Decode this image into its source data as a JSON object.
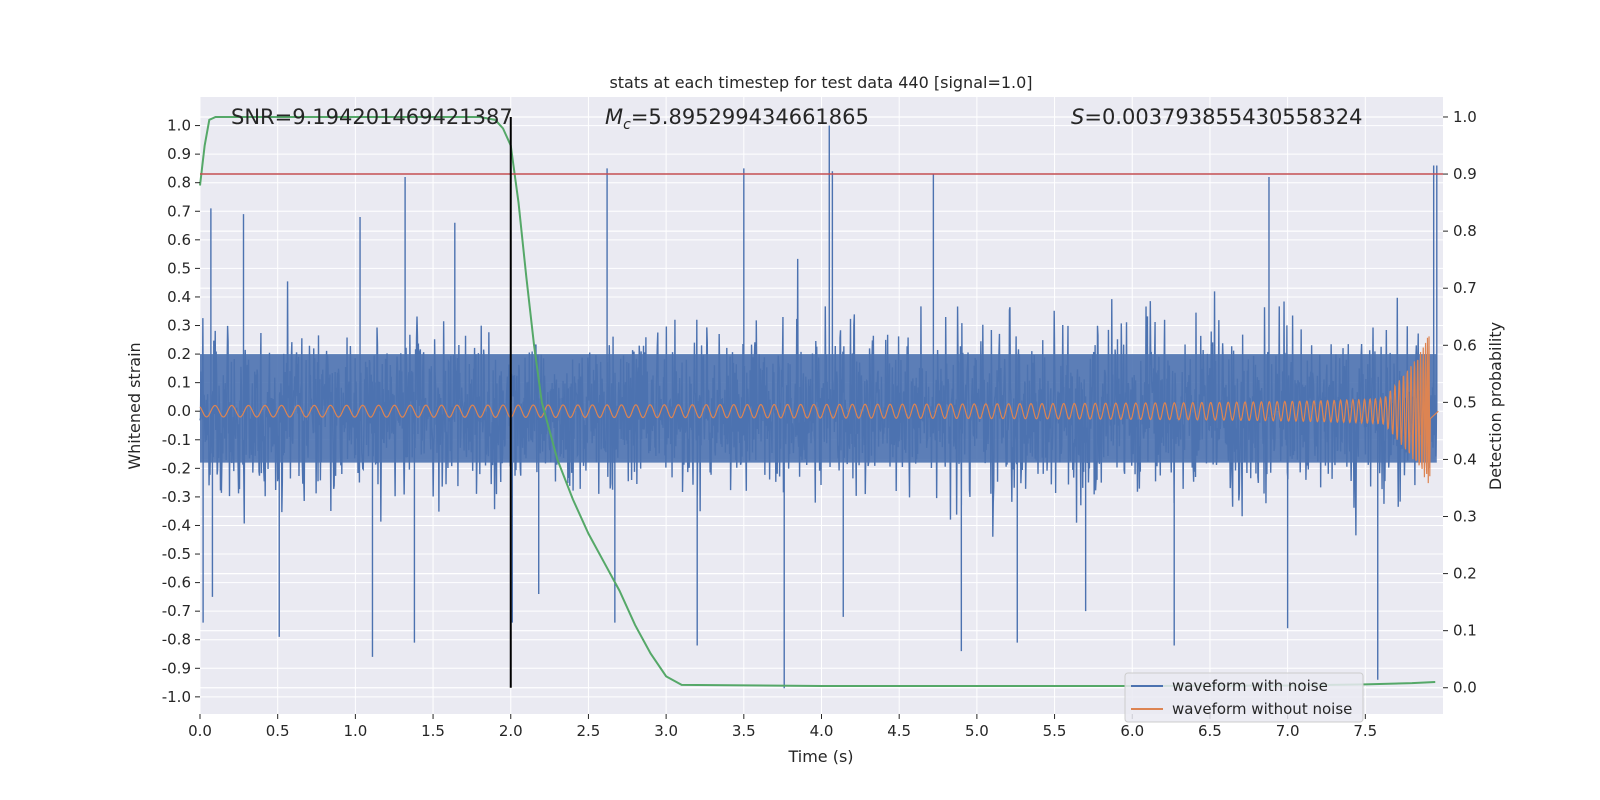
{
  "chart_data": {
    "type": "line",
    "title": "stats at each timestep for test data 440 [signal=1.0]",
    "xlabel": "Time (s)",
    "ylabel": "Whitened strain",
    "y2label": "Detection probability",
    "xlim": [
      0.0,
      8.0
    ],
    "ylim": [
      -1.06,
      1.1
    ],
    "y2lim": [
      -0.046,
      1.035
    ],
    "xticks": [
      0.0,
      0.5,
      1.0,
      1.5,
      2.0,
      2.5,
      3.0,
      3.5,
      4.0,
      4.5,
      5.0,
      5.5,
      6.0,
      6.5,
      7.0,
      7.5
    ],
    "xtick_labels": [
      "0.0",
      "0.5",
      "1.0",
      "1.5",
      "2.0",
      "2.5",
      "3.0",
      "3.5",
      "4.0",
      "4.5",
      "5.0",
      "5.5",
      "6.0",
      "6.5",
      "7.0",
      "7.5"
    ],
    "yticks": [
      1.0,
      0.9,
      0.8,
      0.7,
      0.6,
      0.5,
      0.4,
      0.3,
      0.2,
      0.1,
      0.0,
      -0.1,
      -0.2,
      -0.3,
      -0.4,
      -0.5,
      -0.6,
      -0.7,
      -0.8,
      -0.9,
      -1.0
    ],
    "ytick_labels": [
      "1.0",
      "0.9",
      "0.8",
      "0.7",
      "0.6",
      "0.5",
      "0.4",
      "0.3",
      "0.2",
      "0.1",
      "0.0",
      "-0.1",
      "-0.2",
      "-0.3",
      "-0.4",
      "-0.5",
      "-0.6",
      "-0.7",
      "-0.8",
      "-0.9",
      "-1.0"
    ],
    "y2ticks": [
      1.0,
      0.9,
      0.8,
      0.7,
      0.6,
      0.5,
      0.4,
      0.3,
      0.2,
      0.1,
      0.0
    ],
    "y2tick_labels": [
      "1.0",
      "0.9",
      "0.8",
      "0.7",
      "0.6",
      "0.5",
      "0.4",
      "0.3",
      "0.2",
      "0.1",
      "0.0"
    ],
    "annotations": {
      "snr": "SNR=9.194201469421387",
      "mc_symbol": "M",
      "mc_sub": "c",
      "mc_value": "=5.895299434661865",
      "s_symbol": "S",
      "s_value": "=0.003793855430558324"
    },
    "threshold": {
      "value": 0.9,
      "axis": "y2",
      "color": "#c44e52"
    },
    "marker_time": 2.0,
    "series": [
      {
        "name": "waveform with noise",
        "color": "#4c72b0",
        "axis": "y",
        "description": "dense whitened noise, mostly within ±0.45, spikes up to ~±1.0",
        "envelope_typical": 0.42,
        "spikes": [
          {
            "x": 0.02,
            "y": -0.74
          },
          {
            "x": 0.07,
            "y": 0.71
          },
          {
            "x": 0.08,
            "y": -0.65
          },
          {
            "x": 0.28,
            "y": 0.69
          },
          {
            "x": 0.51,
            "y": -0.79
          },
          {
            "x": 1.03,
            "y": 0.68
          },
          {
            "x": 1.11,
            "y": -0.86
          },
          {
            "x": 1.32,
            "y": 0.82
          },
          {
            "x": 1.38,
            "y": -0.81
          },
          {
            "x": 1.64,
            "y": 0.66
          },
          {
            "x": 2.01,
            "y": -0.74
          },
          {
            "x": 2.18,
            "y": -0.64
          },
          {
            "x": 2.62,
            "y": 0.85
          },
          {
            "x": 2.67,
            "y": -0.74
          },
          {
            "x": 3.2,
            "y": -0.82
          },
          {
            "x": 3.5,
            "y": 0.85
          },
          {
            "x": 3.76,
            "y": -0.97
          },
          {
            "x": 4.05,
            "y": 1.0
          },
          {
            "x": 4.07,
            "y": 0.84
          },
          {
            "x": 4.14,
            "y": -0.72
          },
          {
            "x": 4.72,
            "y": 0.83
          },
          {
            "x": 4.9,
            "y": -0.84
          },
          {
            "x": 5.26,
            "y": -0.81
          },
          {
            "x": 5.7,
            "y": -0.7
          },
          {
            "x": 6.27,
            "y": -0.82
          },
          {
            "x": 6.88,
            "y": 0.82
          },
          {
            "x": 7.0,
            "y": -0.76
          },
          {
            "x": 7.58,
            "y": -0.94
          },
          {
            "x": 7.94,
            "y": 0.86
          },
          {
            "x": 7.96,
            "y": 0.86
          }
        ]
      },
      {
        "name": "waveform without noise",
        "color": "#dd8452",
        "axis": "y",
        "description": "chirp: amplitude ~0.02 growing to ~0.27 at merger near 7.92 s",
        "start_amplitude": 0.02,
        "peak_amplitude": 0.27,
        "merger_time": 7.92
      },
      {
        "name": "detection probability",
        "color": "#55a868",
        "axis": "y2",
        "x": [
          0.0,
          0.03,
          0.06,
          0.1,
          0.3,
          1.0,
          1.5,
          1.8,
          1.9,
          1.95,
          2.0,
          2.05,
          2.1,
          2.15,
          2.2,
          2.3,
          2.4,
          2.5,
          2.6,
          2.7,
          2.8,
          2.9,
          3.0,
          3.1,
          4.0,
          5.0,
          6.0,
          7.0,
          7.5,
          7.8,
          7.95
        ],
        "values": [
          0.88,
          0.95,
          0.995,
          1.0,
          1.0,
          1.0,
          1.0,
          1.0,
          0.995,
          0.98,
          0.95,
          0.85,
          0.72,
          0.6,
          0.5,
          0.4,
          0.33,
          0.27,
          0.22,
          0.17,
          0.11,
          0.06,
          0.02,
          0.005,
          0.003,
          0.003,
          0.003,
          0.004,
          0.006,
          0.008,
          0.01
        ]
      }
    ],
    "legend": {
      "location": "lower-right",
      "entries": [
        {
          "label": "waveform with noise",
          "color": "#4c72b0"
        },
        {
          "label": "waveform without noise",
          "color": "#dd8452"
        }
      ]
    },
    "style": {
      "axes_bg": "#eaeaf2",
      "grid": "#ffffff",
      "marker_color": "#000000"
    }
  }
}
